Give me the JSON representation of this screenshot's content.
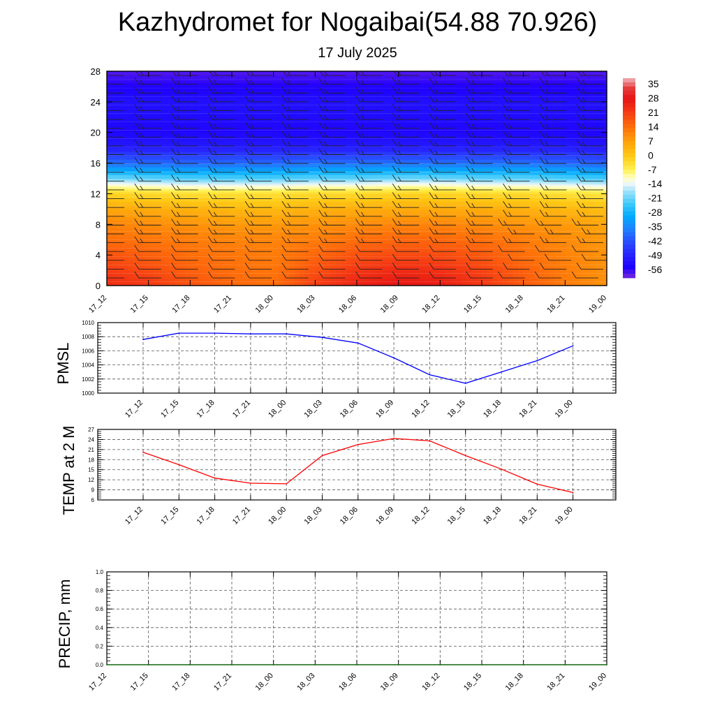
{
  "title": "Kazhydromet for Nogaibai(54.88 70.926)",
  "subtitle": "17 July 2025",
  "chart_data": [
    {
      "type": "heatmap",
      "panel": "cross-section",
      "title": "Kazhydromet for Nogaibai(54.88 70.926)",
      "subtitle": "17 July 2025",
      "xlabel": "",
      "ylabel": "",
      "x_ticks": [
        "17_12",
        "17_15",
        "17_18",
        "17_21",
        "18_00",
        "18_03",
        "18_06",
        "18_09",
        "18_12",
        "18_15",
        "18_18",
        "18_21",
        "19_00"
      ],
      "y_ticks": [
        0,
        4,
        8,
        12,
        16,
        20,
        24,
        28
      ],
      "ylim": [
        0,
        28
      ],
      "colorbar": {
        "labels": [
          "35",
          "28",
          "21",
          "14",
          "7",
          "0",
          "-7",
          "-14",
          "-21",
          "-28",
          "-35",
          "-42",
          "-49",
          "-56"
        ],
        "range": [
          -60,
          38
        ]
      },
      "grid": false,
      "overlay": "wind barbs",
      "levels_y": [
        0,
        2,
        4,
        6,
        8,
        10,
        12,
        13,
        14,
        16,
        18,
        20,
        22,
        24,
        26,
        28
      ],
      "values": [
        [
          24,
          21,
          18,
          14,
          11,
          6,
          -2,
          -10,
          -20,
          -38,
          -50,
          -54,
          -53,
          -52,
          -55,
          -58
        ],
        [
          22,
          19,
          16,
          13,
          10,
          5,
          -3,
          -11,
          -21,
          -39,
          -50,
          -54,
          -53,
          -52,
          -55,
          -58
        ],
        [
          18,
          16,
          14,
          12,
          9,
          4,
          -4,
          -12,
          -22,
          -39,
          -50,
          -54,
          -53,
          -52,
          -55,
          -58
        ],
        [
          15,
          14,
          13,
          11,
          8,
          3,
          -4,
          -12,
          -22,
          -39,
          -50,
          -54,
          -53,
          -52,
          -55,
          -58
        ],
        [
          14,
          13,
          12,
          11,
          8,
          3,
          -4,
          -12,
          -22,
          -39,
          -50,
          -54,
          -53,
          -52,
          -55,
          -58
        ],
        [
          21,
          18,
          15,
          12,
          9,
          4,
          -3,
          -11,
          -21,
          -38,
          -50,
          -54,
          -53,
          -52,
          -55,
          -58
        ],
        [
          26,
          22,
          18,
          14,
          10,
          5,
          -3,
          -11,
          -21,
          -38,
          -50,
          -54,
          -53,
          -52,
          -55,
          -58
        ],
        [
          28,
          24,
          19,
          15,
          11,
          5,
          -2,
          -10,
          -20,
          -38,
          -50,
          -54,
          -53,
          -52,
          -55,
          -58
        ],
        [
          27,
          23,
          19,
          15,
          11,
          5,
          -2,
          -10,
          -20,
          -38,
          -50,
          -54,
          -53,
          -52,
          -55,
          -58
        ],
        [
          22,
          20,
          17,
          14,
          10,
          5,
          -3,
          -11,
          -21,
          -38,
          -50,
          -54,
          -53,
          -52,
          -55,
          -58
        ],
        [
          17,
          16,
          14,
          12,
          9,
          4,
          -3,
          -11,
          -21,
          -38,
          -50,
          -54,
          -53,
          -52,
          -55,
          -58
        ],
        [
          12,
          12,
          11,
          10,
          8,
          3,
          -4,
          -12,
          -22,
          -39,
          -50,
          -54,
          -53,
          -52,
          -55,
          -58
        ],
        [
          9,
          9,
          9,
          8,
          6,
          2,
          -5,
          -13,
          -23,
          -40,
          -51,
          -54,
          -53,
          -52,
          -55,
          -58
        ]
      ]
    },
    {
      "type": "line",
      "panel": "pmsl",
      "title": "",
      "xlabel": "",
      "ylabel": "PMSL",
      "x": [
        "17_12",
        "17_15",
        "17_18",
        "17_21",
        "18_00",
        "18_03",
        "18_06",
        "18_09",
        "18_12",
        "18_15",
        "18_18",
        "18_21",
        "19_00"
      ],
      "y_ticks": [
        "1000",
        "1002",
        "1004",
        "1006",
        "1008",
        "1010"
      ],
      "ylim": [
        1000,
        1010
      ],
      "grid": true,
      "color": "#0000ff",
      "series": [
        {
          "values": [
            1007.6,
            1008.5,
            1008.5,
            1008.4,
            1008.4,
            1007.9,
            1007.1,
            1005.0,
            1002.6,
            1001.4,
            1003.0,
            1004.6,
            1006.7
          ]
        }
      ]
    },
    {
      "type": "line",
      "panel": "temp",
      "title": "",
      "xlabel": "",
      "ylabel": "TEMP at 2 M",
      "x": [
        "17_12",
        "17_15",
        "17_18",
        "17_21",
        "18_00",
        "18_03",
        "18_06",
        "18_09",
        "18_12",
        "18_15",
        "18_18",
        "18_21",
        "19_00"
      ],
      "y_ticks": [
        "6",
        "9",
        "12",
        "15",
        "18",
        "21",
        "24",
        "27"
      ],
      "ylim": [
        6,
        27
      ],
      "grid": true,
      "color": "#ff0000",
      "series": [
        {
          "values": [
            20.2,
            16.5,
            12.5,
            11.0,
            10.8,
            19.2,
            22.5,
            24.3,
            23.6,
            19.2,
            15.2,
            10.7,
            8.2
          ]
        }
      ]
    },
    {
      "type": "line",
      "panel": "precip",
      "title": "",
      "xlabel": "",
      "ylabel": "PRECIP, mm",
      "x": [
        "17_12",
        "17_15",
        "17_18",
        "17_21",
        "18_00",
        "18_03",
        "18_06",
        "18_09",
        "18_12",
        "18_15",
        "18_18",
        "18_21",
        "19_00"
      ],
      "y_ticks": [
        "0.0",
        "0.2",
        "0.4",
        "0.6",
        "0.8",
        "1.0"
      ],
      "ylim": [
        0,
        1
      ],
      "grid": true,
      "color": "#006400",
      "series": [
        {
          "values": [
            0,
            0,
            0,
            0,
            0,
            0,
            0,
            0,
            0,
            0,
            0,
            0,
            0
          ]
        }
      ]
    }
  ]
}
